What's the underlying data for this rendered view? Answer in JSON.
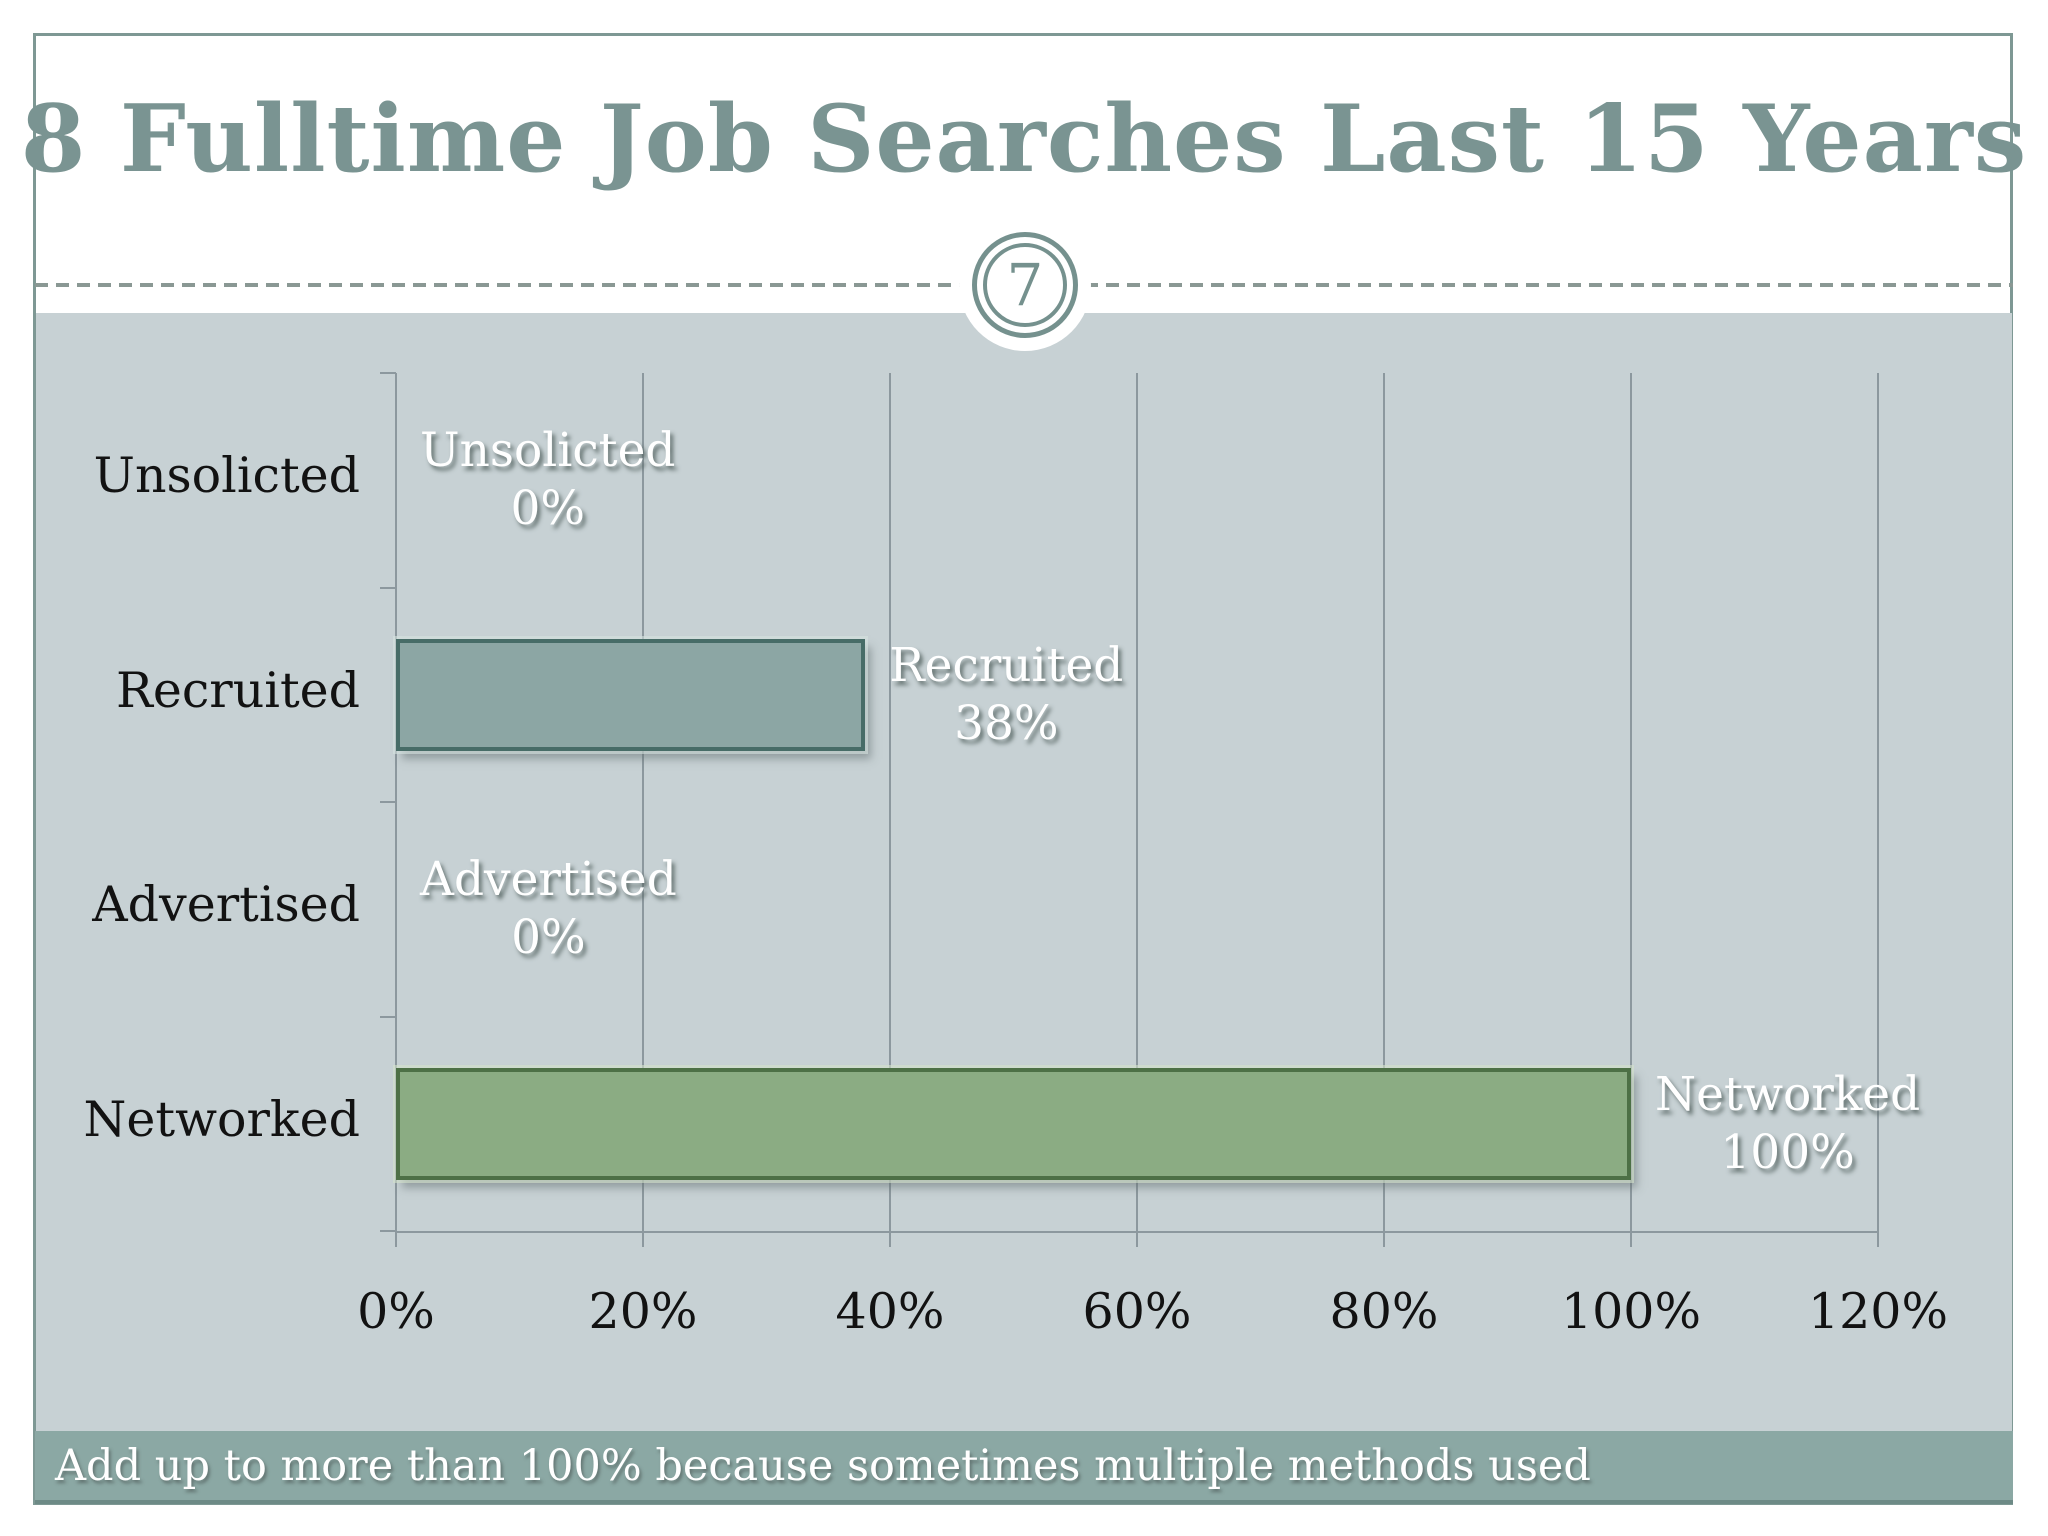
{
  "slide": {
    "title": "8 Fulltime Job Searches Last 15 Years",
    "page_number": "7",
    "footnote": "Add up to more than 100% because sometimes multiple methods used"
  },
  "colors": {
    "accent_teal": "#7a9492",
    "chart_background": "#c7d1d4",
    "footer_band": "#8ba8a4",
    "gridline": "#8c989e",
    "recruited_bar_fill": "#8ca6a4",
    "recruited_bar_border": "#476c67",
    "networked_bar_fill": "#8bac83",
    "networked_bar_border": "#4d7046"
  },
  "chart_data": {
    "type": "bar",
    "orientation": "horizontal",
    "title": "",
    "xlabel": "",
    "ylabel": "",
    "categories": [
      "Unsolicted",
      "Recruited",
      "Advertised",
      "Networked"
    ],
    "values": [
      0,
      38,
      0,
      100
    ],
    "data_labels": [
      [
        "Unsolicted",
        "0%"
      ],
      [
        "Recruited",
        "38%"
      ],
      [
        "Advertised",
        "0%"
      ],
      [
        "Networked",
        "100%"
      ]
    ],
    "x_ticks": [
      "0%",
      "20%",
      "40%",
      "60%",
      "80%",
      "100%",
      "120%"
    ],
    "xlim": [
      0,
      120
    ],
    "grid": true,
    "legend": false,
    "bar_fill_colors": [
      "",
      "#8ca6a4",
      "",
      "#8bac83"
    ],
    "bar_border_colors": [
      "",
      "#476c67",
      "",
      "#4d7046"
    ],
    "bar_bevel_colors": [
      "",
      "rgba(214,226,224,0.6)",
      "",
      "rgba(212,226,204,0.6)"
    ]
  }
}
